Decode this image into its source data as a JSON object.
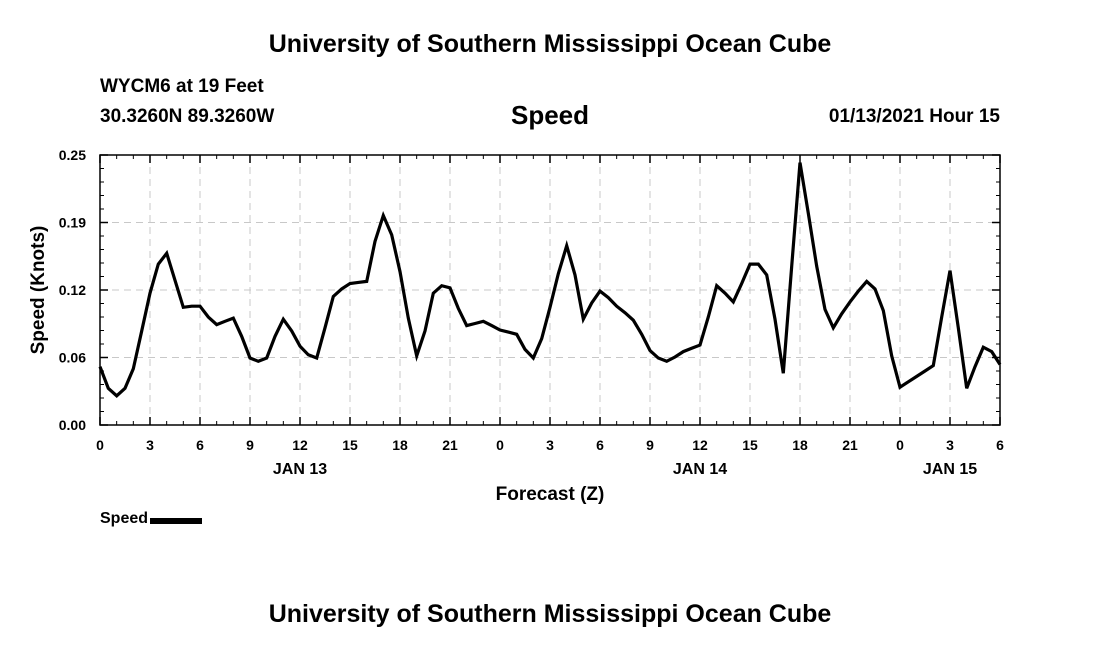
{
  "header": {
    "institution": "University of Southern Mississippi Ocean Cube",
    "station": "WYCM6 at 19 Feet",
    "coordinates": "30.3260N 89.3260W",
    "datetime": "01/13/2021 Hour 15"
  },
  "footer": {
    "institution": "University of Southern Mississippi Ocean Cube"
  },
  "legend": {
    "label": "Speed"
  },
  "colors": {
    "line": "#000000",
    "grid": "#c8c8c8",
    "background": "#ffffff"
  },
  "chart_data": {
    "type": "line",
    "title": "Speed",
    "xlabel": "Forecast (Z)",
    "ylabel": "Speed (Knots)",
    "ylim": [
      0,
      0.25
    ],
    "xlim": [
      0,
      54
    ],
    "x_unit": "hours from 2021-01-13 00Z",
    "y_ticks": [
      "0.00",
      "0.06",
      "0.12",
      "0.19",
      "0.25"
    ],
    "y_tick_values": [
      0,
      0.0625,
      0.125,
      0.1875,
      0.25
    ],
    "x_ticks": [
      0,
      3,
      6,
      9,
      12,
      15,
      18,
      21,
      24,
      27,
      30,
      33,
      36,
      39,
      42,
      45,
      48,
      51,
      54
    ],
    "x_tick_labels": [
      "0",
      "3",
      "6",
      "9",
      "12",
      "15",
      "18",
      "21",
      "0",
      "3",
      "6",
      "9",
      "12",
      "15",
      "18",
      "21",
      "0",
      "3",
      "6"
    ],
    "day_labels": [
      {
        "x": 12,
        "label": "JAN 13"
      },
      {
        "x": 36,
        "label": "JAN 14"
      },
      {
        "x": 51,
        "label": "JAN 15"
      }
    ],
    "grid": true,
    "series": [
      {
        "name": "Speed",
        "x": [
          0,
          0.5,
          1,
          1.5,
          2,
          2.5,
          3,
          3.5,
          4,
          4.5,
          5,
          5.5,
          6,
          6.5,
          7,
          7.5,
          8,
          8.5,
          9,
          9.5,
          10,
          10.5,
          11,
          11.5,
          12,
          12.5,
          13,
          13.5,
          14,
          14.5,
          15,
          15.5,
          16,
          16.5,
          17,
          17.5,
          18,
          18.5,
          19,
          19.5,
          20,
          20.5,
          21,
          21.5,
          22,
          22.5,
          23,
          23.5,
          24,
          24.5,
          25,
          25.5,
          26,
          26.5,
          27,
          27.5,
          28,
          28.5,
          29,
          29.5,
          30,
          30.5,
          31,
          31.5,
          32,
          32.5,
          33,
          33.5,
          34,
          34.5,
          35,
          35.5,
          36,
          36.5,
          37,
          37.5,
          38,
          38.5,
          39,
          39.5,
          40,
          40.5,
          41,
          41.5,
          42,
          42.5,
          43,
          43.5,
          44,
          44.5,
          45,
          45.5,
          46,
          46.5,
          47,
          47.5,
          48,
          48.5,
          49,
          49.5,
          50,
          50.5,
          51,
          51.5,
          52,
          52.5,
          53,
          53.5,
          54
        ],
        "values": [
          0.054,
          0.034,
          0.027,
          0.034,
          0.052,
          0.087,
          0.122,
          0.149,
          0.159,
          0.134,
          0.109,
          0.11,
          0.11,
          0.1,
          0.093,
          0.096,
          0.099,
          0.082,
          0.062,
          0.059,
          0.062,
          0.082,
          0.098,
          0.087,
          0.073,
          0.065,
          0.062,
          0.09,
          0.119,
          0.126,
          0.131,
          0.132,
          0.133,
          0.17,
          0.194,
          0.176,
          0.142,
          0.099,
          0.064,
          0.087,
          0.122,
          0.129,
          0.127,
          0.108,
          0.092,
          0.094,
          0.096,
          0.092,
          0.088,
          0.086,
          0.084,
          0.07,
          0.062,
          0.08,
          0.109,
          0.14,
          0.166,
          0.139,
          0.098,
          0.113,
          0.124,
          0.118,
          0.11,
          0.104,
          0.097,
          0.084,
          0.069,
          0.062,
          0.059,
          0.063,
          0.068,
          0.071,
          0.074,
          0.1,
          0.129,
          0.122,
          0.114,
          0.131,
          0.149,
          0.149,
          0.139,
          0.098,
          0.048,
          0.147,
          0.243,
          0.196,
          0.147,
          0.107,
          0.09,
          0.103,
          0.114,
          0.124,
          0.133,
          0.126,
          0.106,
          0.064,
          0.035,
          0.04,
          0.045,
          0.05,
          0.055,
          0.1,
          0.143,
          0.09,
          0.034,
          0.054,
          0.072,
          0.068,
          0.056
        ]
      }
    ]
  }
}
